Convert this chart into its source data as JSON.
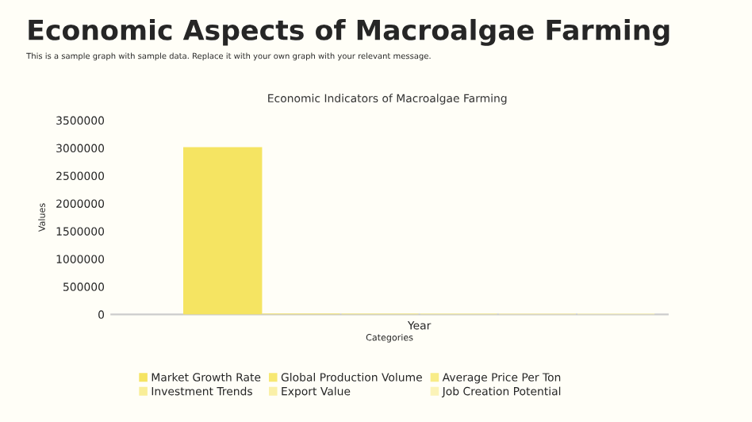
{
  "chart_data": {
    "type": "bar",
    "title": "Economic Aspects of Macroalgae Farming",
    "subtitle": "This is a sample graph with sample data. Replace it with your own graph with your relevant message.",
    "annotations": [
      "Economic Indicators of Macroalgae Farming"
    ],
    "xlabel": "Categories",
    "ylabel": "Values",
    "categories": [
      "Year"
    ],
    "series": [
      {
        "name": "Market Growth Rate",
        "color": "#f5e462",
        "values": [
          3000000
        ]
      },
      {
        "name": "Global Production Volume",
        "color": "#f7e872",
        "values": [
          0
        ]
      },
      {
        "name": "Average Price Per Ton",
        "color": "#f8ec88",
        "values": [
          0
        ]
      },
      {
        "name": "Investment Trends",
        "color": "#f9ee98",
        "values": [
          0
        ]
      },
      {
        "name": "Export Value",
        "color": "#faf0a8",
        "values": [
          0
        ]
      },
      {
        "name": "Job Creation Potential",
        "color": "#fbf3b8",
        "values": [
          0
        ]
      }
    ],
    "ylim": [
      0,
      3500000
    ],
    "yticks": [
      0,
      500000,
      1000000,
      1500000,
      2000000,
      2500000,
      3000000,
      3500000
    ],
    "grid": false,
    "legend": "bottom"
  }
}
